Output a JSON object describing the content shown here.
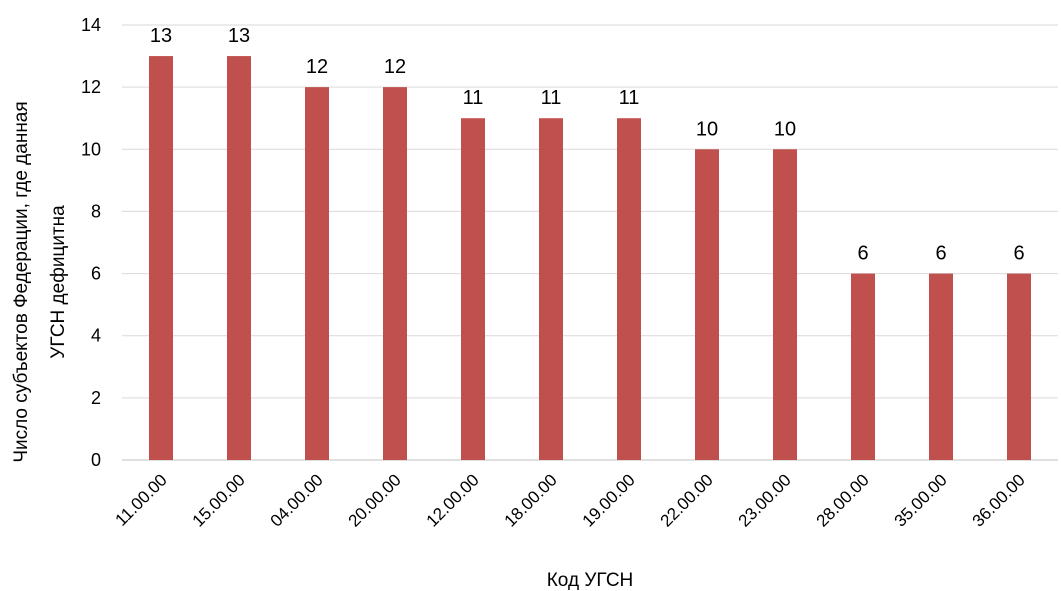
{
  "chart_data": {
    "type": "bar",
    "title": "",
    "xlabel": "Код УГСН",
    "ylabel_lines": [
      "Число субъектов Федерации, где данная",
      "УГСН дефицитна"
    ],
    "categories": [
      "11.00.00",
      "15.00.00",
      "04.00.00",
      "20.00.00",
      "12.00.00",
      "18.00.00",
      "19.00.00",
      "22.00.00",
      "23.00.00",
      "28.00.00",
      "35.00.00",
      "36.00.00"
    ],
    "values": [
      13,
      13,
      12,
      12,
      11,
      11,
      11,
      10,
      10,
      6,
      6,
      6
    ],
    "ylim": [
      0,
      14
    ],
    "yticks": [
      0,
      2,
      4,
      6,
      8,
      10,
      12,
      14
    ],
    "grid": true,
    "legend": "none",
    "bar_color": "#c0504d",
    "data_labels": true
  }
}
